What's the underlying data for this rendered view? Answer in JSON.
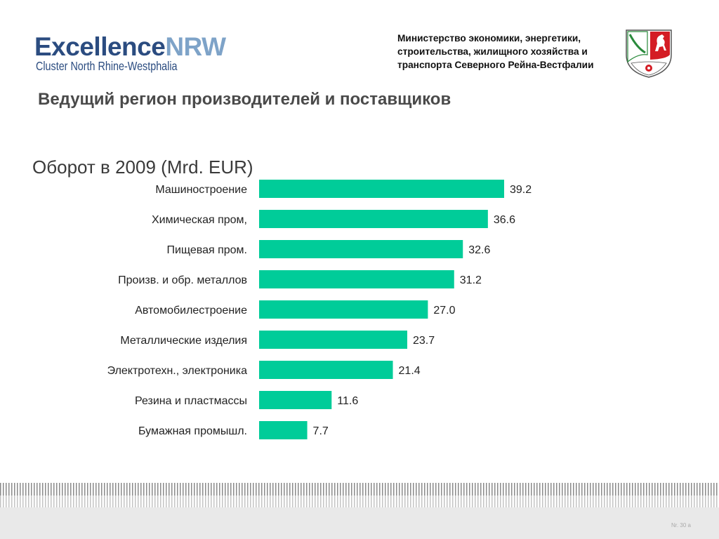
{
  "logo": {
    "part1": "Excellence",
    "part2": "NRW",
    "subtitle": "Cluster North Rhine-Westphalia"
  },
  "ministry": {
    "text": "Министерство экономики, энергетики,\nстроительства, жилищного хозяйства и\nтранспорта Северного Рейна-Вестфалии"
  },
  "heading": "Ведущий регион производителей и поставщиков",
  "chart_data": {
    "type": "bar",
    "orientation": "horizontal",
    "title": "Оборот в 2009 (Mrd. EUR)",
    "categories": [
      "Машиностроение",
      "Химическая пром,",
      "Пищевая пром.",
      "Произв. и обр. металлов",
      "Автомобилестроение",
      "Металлические изделия",
      "Электротехн., электроника",
      "Резина и пластмассы",
      "Бумажная промышл."
    ],
    "values": [
      39.2,
      36.6,
      32.6,
      31.2,
      27.0,
      23.7,
      21.4,
      11.6,
      7.7
    ],
    "value_labels": [
      "39.2",
      "36.6",
      "32.6",
      "31.2",
      "27.0",
      "23.7",
      "21.4",
      "11.6",
      "7.7"
    ],
    "xlim": [
      0,
      39.2
    ],
    "grid": false,
    "bar_color": "#00cc99"
  },
  "footer": {
    "slide_number": "Nr. 30 a"
  }
}
